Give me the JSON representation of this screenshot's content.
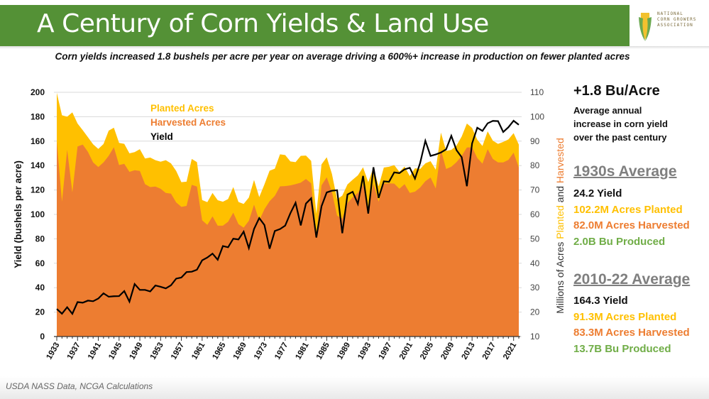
{
  "header": {
    "title": "A Century of Corn Yields & Land Use",
    "subtitle": "Corn yields increased 1.8 bushels per acre per year on average driving a 600%+ increase in production on fewer planted acres",
    "logo_text": "NATIONAL CORN GROWERS ASSOCIATION"
  },
  "side": {
    "headline": "+1.8 Bu/Acre",
    "desc": [
      "Average annual",
      "increase in corn yield",
      "over the past century"
    ],
    "period1": {
      "title": "1930s Average",
      "yield": "24.2 Yield",
      "planted": "102.2M Acres Planted",
      "harvested": "82.0M Acres Harvested",
      "produced": "2.0B Bu Produced"
    },
    "period2": {
      "title": "2010-22 Average",
      "yield": "164.3 Yield",
      "planted": "91.3M Acres Planted",
      "harvested": "83.3M Acres Harvested",
      "produced": "13.7B Bu Produced"
    }
  },
  "footer": {
    "source": "USDA NASS Data, NCGA Calculations"
  },
  "colors": {
    "planted": "#FFC000",
    "harvested": "#ED7D31",
    "yield": "#000000",
    "produced": "#70AD47",
    "banner": "#549136"
  },
  "chart_data": {
    "type": "area+line",
    "legend": [
      "Planted Acres",
      "Harvested Acres",
      "Yield"
    ],
    "legend_position": "top-left",
    "ylabel": "Yield (bushels per acre)",
    "y2label_parts": [
      "Millions of Acres ",
      "Planted",
      " and ",
      "Harvested"
    ],
    "ylim": [
      0,
      200
    ],
    "yticks": [
      0,
      20,
      40,
      60,
      80,
      100,
      120,
      140,
      160,
      180,
      200
    ],
    "y2lim": [
      10,
      110
    ],
    "y2ticks": [
      10,
      20,
      30,
      40,
      50,
      60,
      70,
      80,
      90,
      100,
      110
    ],
    "xlim": [
      1933,
      2022
    ],
    "xticks": [
      1933,
      1937,
      1941,
      1945,
      1949,
      1953,
      1957,
      1961,
      1965,
      1969,
      1973,
      1977,
      1981,
      1985,
      1989,
      1993,
      1997,
      2001,
      2005,
      2009,
      2013,
      2017,
      2021
    ],
    "grid": true,
    "years_start": 1933,
    "yield": [
      22.6,
      18.7,
      24.0,
      18.6,
      28.2,
      27.7,
      29.4,
      28.9,
      31.1,
      35.4,
      32.6,
      33.0,
      33.1,
      37.2,
      28.6,
      43.0,
      38.2,
      38.2,
      36.9,
      41.8,
      40.7,
      39.4,
      42.0,
      47.4,
      48.3,
      52.8,
      53.1,
      54.7,
      62.4,
      64.7,
      67.9,
      62.9,
      74.1,
      73.1,
      80.1,
      79.5,
      85.9,
      72.4,
      88.1,
      97.0,
      91.3,
      71.9,
      86.4,
      88.0,
      90.8,
      101.0,
      109.5,
      91.0,
      108.9,
      113.2,
      81.1,
      106.7,
      118.0,
      119.4,
      119.8,
      84.6,
      116.3,
      118.5,
      108.6,
      131.5,
      100.7,
      138.6,
      113.5,
      127.1,
      126.7,
      134.4,
      133.8,
      136.9,
      138.2,
      129.3,
      142.2,
      160.3,
      147.9,
      149.1,
      150.7,
      153.3,
      164.4,
      152.6,
      146.8,
      123.1,
      158.1,
      171.0,
      168.4,
      174.6,
      176.6,
      176.4,
      167.5,
      171.4,
      176.7,
      173.4
    ],
    "planted": [
      109.8,
      100.6,
      100.0,
      101.8,
      97.2,
      94.5,
      91.6,
      88.7,
      86.8,
      88.8,
      94.3,
      95.5,
      89.3,
      88.9,
      85.0,
      85.5,
      86.7,
      82.9,
      83.3,
      82.2,
      81.6,
      82.2,
      80.9,
      77.8,
      73.2,
      73.4,
      82.7,
      81.4,
      65.9,
      65.0,
      68.8,
      65.8,
      65.2,
      66.3,
      71.2,
      65.1,
      64.3,
      66.9,
      74.1,
      67.1,
      72.3,
      77.9,
      78.7,
      84.6,
      84.3,
      81.7,
      81.4,
      84.0,
      84.1,
      81.9,
      60.2,
      80.5,
      83.4,
      76.6,
      66.2,
      67.7,
      72.3,
      74.2,
      76.0,
      79.3,
      73.2,
      79.2,
      71.5,
      79.2,
      79.5,
      80.2,
      77.4,
      79.6,
      75.7,
      78.9,
      78.6,
      80.9,
      81.8,
      78.3,
      93.5,
      86.0,
      86.4,
      88.2,
      91.9,
      97.2,
      95.4,
      90.6,
      88.0,
      94.0,
      90.2,
      88.9,
      89.7,
      90.7,
      93.3,
      88.6
    ],
    "harvested": [
      90.0,
      65.2,
      86.5,
      69.0,
      87.8,
      88.6,
      85.6,
      81.3,
      79.4,
      81.3,
      84.0,
      87.5,
      80.2,
      80.7,
      77.4,
      78.1,
      77.8,
      72.4,
      71.2,
      71.4,
      70.5,
      68.8,
      68.5,
      64.9,
      63.1,
      63.5,
      72.1,
      71.4,
      57.6,
      55.7,
      59.2,
      55.4,
      55.4,
      57.0,
      60.7,
      56.0,
      54.6,
      57.4,
      64.0,
      57.5,
      62.1,
      65.4,
      67.6,
      71.5,
      71.6,
      71.9,
      72.4,
      73.0,
      74.5,
      72.7,
      51.5,
      71.9,
      75.2,
      69.2,
      59.5,
      58.3,
      64.7,
      67.0,
      68.8,
      72.1,
      62.9,
      72.5,
      65.2,
      72.6,
      72.7,
      72.6,
      70.5,
      72.4,
      68.8,
      69.3,
      71.0,
      73.6,
      75.1,
      70.6,
      86.5,
      78.6,
      79.5,
      81.4,
      84.0,
      87.4,
      87.5,
      83.1,
      80.8,
      86.7,
      82.7,
      81.3,
      81.3,
      82.3,
      85.3,
      79.2
    ]
  }
}
